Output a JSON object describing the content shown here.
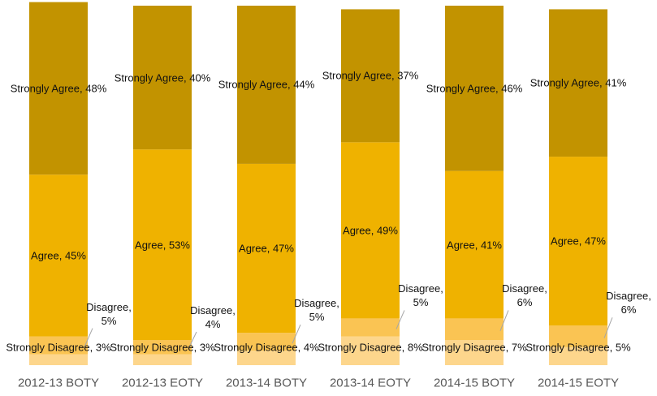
{
  "chart_data": {
    "type": "stacked_bar",
    "categories": [
      "2012-13 BOTY",
      "2012-13 EOTY",
      "2013-14 BOTY",
      "2013-14 EOTY",
      "2014-15 BOTY",
      "2014-15 EOTY"
    ],
    "ylim": [
      0,
      100
    ],
    "series": [
      {
        "name": "Strongly Disagree",
        "color": "#fdd68c",
        "values": [
          3,
          3,
          4,
          8,
          7,
          5
        ],
        "value_labels": [
          "Strongly Disagree, 3%",
          "Strongly Disagree, 3%",
          "Strongly Disagree, 4%",
          "Strongly Disagree, 8%",
          "Strongly Disagree, 7%",
          "Strongly Disagree, 5%"
        ]
      },
      {
        "name": "Disagree",
        "color": "#fac453",
        "values": [
          5,
          4,
          5,
          5,
          6,
          6
        ],
        "value_labels": [
          "Disagree, 5%",
          "Disagree, 4%",
          "Disagree, 5%",
          "Disagree, 5%",
          "Disagree, 6%",
          "Disagree, 6%"
        ]
      },
      {
        "name": "Agree",
        "color": "#efb200",
        "values": [
          45,
          53,
          47,
          49,
          41,
          47
        ],
        "value_labels": [
          "Agree, 45%",
          "Agree, 53%",
          "Agree, 47%",
          "Agree, 49%",
          "Agree, 41%",
          "Agree, 47%"
        ]
      },
      {
        "name": "Strongly Agree",
        "color": "#c29300",
        "values": [
          48,
          40,
          44,
          37,
          46,
          41
        ],
        "value_labels": [
          "Strongly Agree, 48%",
          "Strongly Agree, 40%",
          "Strongly Agree, 44%",
          "Strongly Agree, 37%",
          "Strongly Agree, 46%",
          "Strongly Agree, 41%"
        ]
      }
    ]
  }
}
